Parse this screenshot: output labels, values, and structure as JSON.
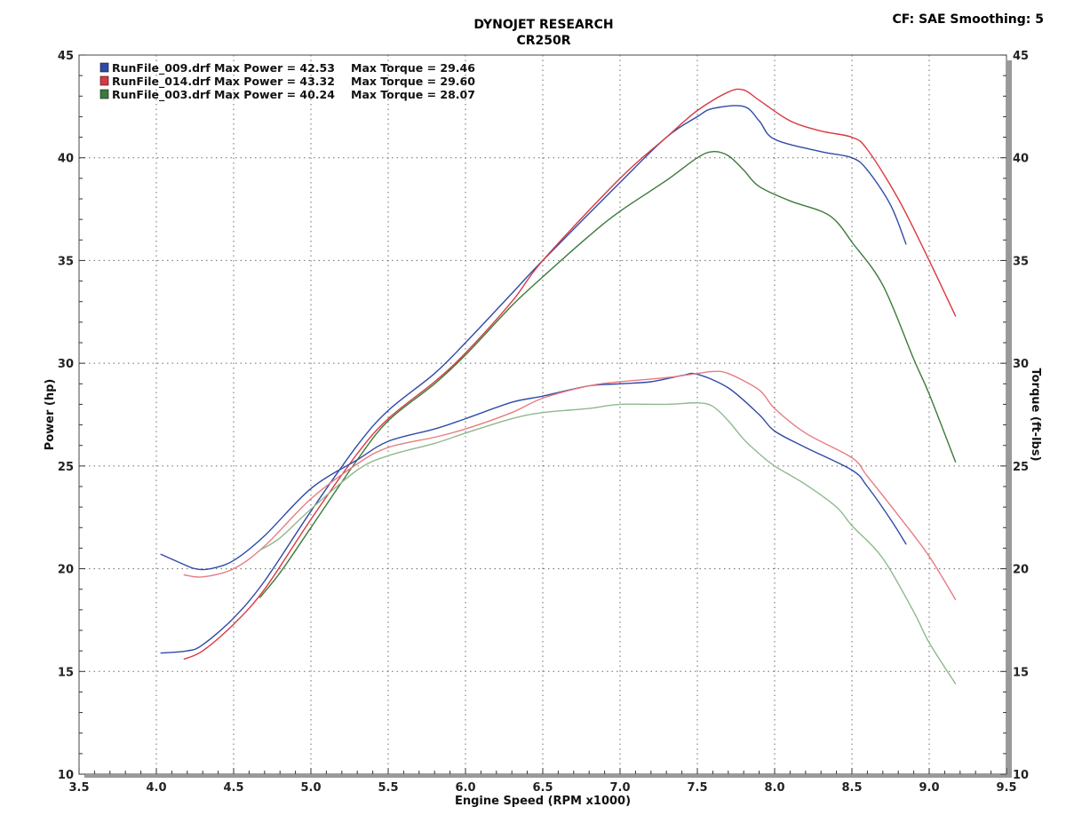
{
  "header": {
    "title": "DYNOJET RESEARCH",
    "subtitle": "CR250R",
    "cf_label": "CF: SAE  Smoothing: 5"
  },
  "chart_data": {
    "type": "line",
    "title": "DYNOJET RESEARCH",
    "subtitle": "CR250R",
    "xlabel": "Engine Speed (RPM x1000)",
    "ylabel": "Power (hp)",
    "y2label": "Torque (ft-lbs)",
    "xlim": [
      3.5,
      9.5
    ],
    "ylim": [
      10,
      45
    ],
    "y2lim": [
      10,
      45
    ],
    "x_ticks": [
      "3.5",
      "4.0",
      "4.5",
      "5.0",
      "5.5",
      "6.0",
      "6.5",
      "7.0",
      "7.5",
      "8.0",
      "8.5",
      "9.0",
      "9.5"
    ],
    "y_ticks": [
      "10",
      "15",
      "20",
      "25",
      "30",
      "35",
      "40",
      "45"
    ],
    "y2_ticks": [
      "10",
      "15",
      "20",
      "25",
      "30",
      "35",
      "40",
      "45"
    ],
    "grid": true,
    "legend_position": "top-left",
    "legend": [
      {
        "run": "RunFile_009.drf",
        "power": "Max Power = 42.53",
        "torque": "Max Torque = 29.46",
        "color": "#2f4aa8"
      },
      {
        "run": "RunFile_014.drf",
        "power": "Max Power = 43.32",
        "torque": "Max Torque = 29.60",
        "color": "#d9393f"
      },
      {
        "run": "RunFile_003.drf",
        "power": "Max Power = 40.24",
        "torque": "Max Torque = 28.07",
        "color": "#3b7a3b"
      }
    ],
    "series": [
      {
        "name": "RunFile_009.drf",
        "kind": "power",
        "color": "#2f4aa8",
        "x": [
          4.03,
          4.2,
          4.3,
          4.5,
          4.7,
          5.0,
          5.3,
          5.5,
          5.8,
          6.0,
          6.3,
          6.5,
          7.0,
          7.3,
          7.5,
          7.6,
          7.8,
          7.9,
          8.0,
          8.3,
          8.5,
          8.6,
          8.75,
          8.85
        ],
        "y": [
          15.9,
          16.0,
          16.3,
          17.6,
          19.4,
          22.8,
          26.0,
          27.7,
          29.5,
          31.0,
          33.4,
          35.0,
          38.8,
          41.0,
          42.0,
          42.4,
          42.5,
          41.8,
          40.9,
          40.3,
          40.0,
          39.4,
          37.7,
          35.8
        ]
      },
      {
        "name": "RunFile_014.drf",
        "kind": "power",
        "color": "#d9393f",
        "x": [
          4.18,
          4.3,
          4.5,
          4.7,
          5.0,
          5.3,
          5.5,
          5.8,
          6.0,
          6.3,
          6.5,
          7.0,
          7.3,
          7.5,
          7.7,
          7.8,
          7.9,
          8.1,
          8.3,
          8.5,
          8.6,
          8.8,
          9.0,
          9.17
        ],
        "y": [
          15.6,
          16.0,
          17.3,
          19.0,
          22.4,
          25.6,
          27.3,
          29.1,
          30.5,
          33.0,
          35.0,
          39.0,
          41.0,
          42.3,
          43.2,
          43.3,
          42.8,
          41.8,
          41.3,
          41.0,
          40.4,
          38.0,
          35.0,
          32.3
        ]
      },
      {
        "name": "RunFile_003.drf",
        "kind": "power",
        "color": "#3b7a3b",
        "x": [
          4.67,
          4.8,
          5.0,
          5.3,
          5.5,
          5.8,
          6.0,
          6.3,
          6.5,
          6.8,
          7.0,
          7.3,
          7.5,
          7.6,
          7.7,
          7.8,
          7.9,
          8.1,
          8.3,
          8.4,
          8.5,
          8.7,
          8.9,
          9.0,
          9.17
        ],
        "y": [
          18.6,
          19.8,
          22.0,
          25.3,
          27.2,
          29.0,
          30.4,
          32.8,
          34.2,
          36.2,
          37.4,
          38.9,
          40.0,
          40.3,
          40.1,
          39.4,
          38.6,
          37.9,
          37.4,
          36.9,
          35.9,
          33.8,
          30.2,
          28.5,
          25.2
        ]
      },
      {
        "name": "RunFile_009.drf",
        "kind": "torque",
        "color": "#2f4aa8",
        "x": [
          4.03,
          4.15,
          4.25,
          4.35,
          4.5,
          4.7,
          5.0,
          5.3,
          5.5,
          5.8,
          6.0,
          6.3,
          6.5,
          6.8,
          7.0,
          7.2,
          7.4,
          7.5,
          7.7,
          7.9,
          8.0,
          8.2,
          8.5,
          8.6,
          8.75,
          8.85
        ],
        "y": [
          20.7,
          20.3,
          20.0,
          20.0,
          20.4,
          21.6,
          23.9,
          25.3,
          26.2,
          26.8,
          27.3,
          28.1,
          28.4,
          28.9,
          29.0,
          29.1,
          29.4,
          29.46,
          28.8,
          27.5,
          26.7,
          25.9,
          24.8,
          24.0,
          22.4,
          21.2
        ]
      },
      {
        "name": "RunFile_014.drf",
        "kind": "torque",
        "color": "#e87b82",
        "x": [
          4.18,
          4.3,
          4.5,
          4.7,
          5.0,
          5.3,
          5.5,
          5.8,
          6.0,
          6.3,
          6.5,
          6.8,
          7.0,
          7.3,
          7.5,
          7.6,
          7.7,
          7.9,
          8.0,
          8.2,
          8.5,
          8.6,
          8.8,
          9.0,
          9.17
        ],
        "y": [
          19.7,
          19.6,
          20.0,
          21.1,
          23.4,
          25.1,
          25.9,
          26.4,
          26.8,
          27.6,
          28.3,
          28.9,
          29.1,
          29.3,
          29.5,
          29.6,
          29.5,
          28.7,
          27.8,
          26.6,
          25.4,
          24.5,
          22.6,
          20.6,
          18.5
        ]
      },
      {
        "name": "RunFile_003.drf",
        "kind": "torque",
        "color": "#8fb88f",
        "x": [
          4.67,
          4.8,
          5.0,
          5.3,
          5.5,
          5.8,
          6.0,
          6.3,
          6.5,
          6.8,
          7.0,
          7.3,
          7.5,
          7.6,
          7.7,
          7.8,
          7.9,
          8.0,
          8.2,
          8.4,
          8.5,
          8.7,
          8.9,
          9.0,
          9.17
        ],
        "y": [
          20.9,
          21.5,
          22.9,
          24.8,
          25.5,
          26.1,
          26.6,
          27.3,
          27.6,
          27.8,
          28.0,
          28.0,
          28.07,
          27.9,
          27.2,
          26.3,
          25.6,
          25.0,
          24.1,
          23.0,
          22.1,
          20.5,
          17.9,
          16.4,
          14.4
        ]
      }
    ]
  }
}
